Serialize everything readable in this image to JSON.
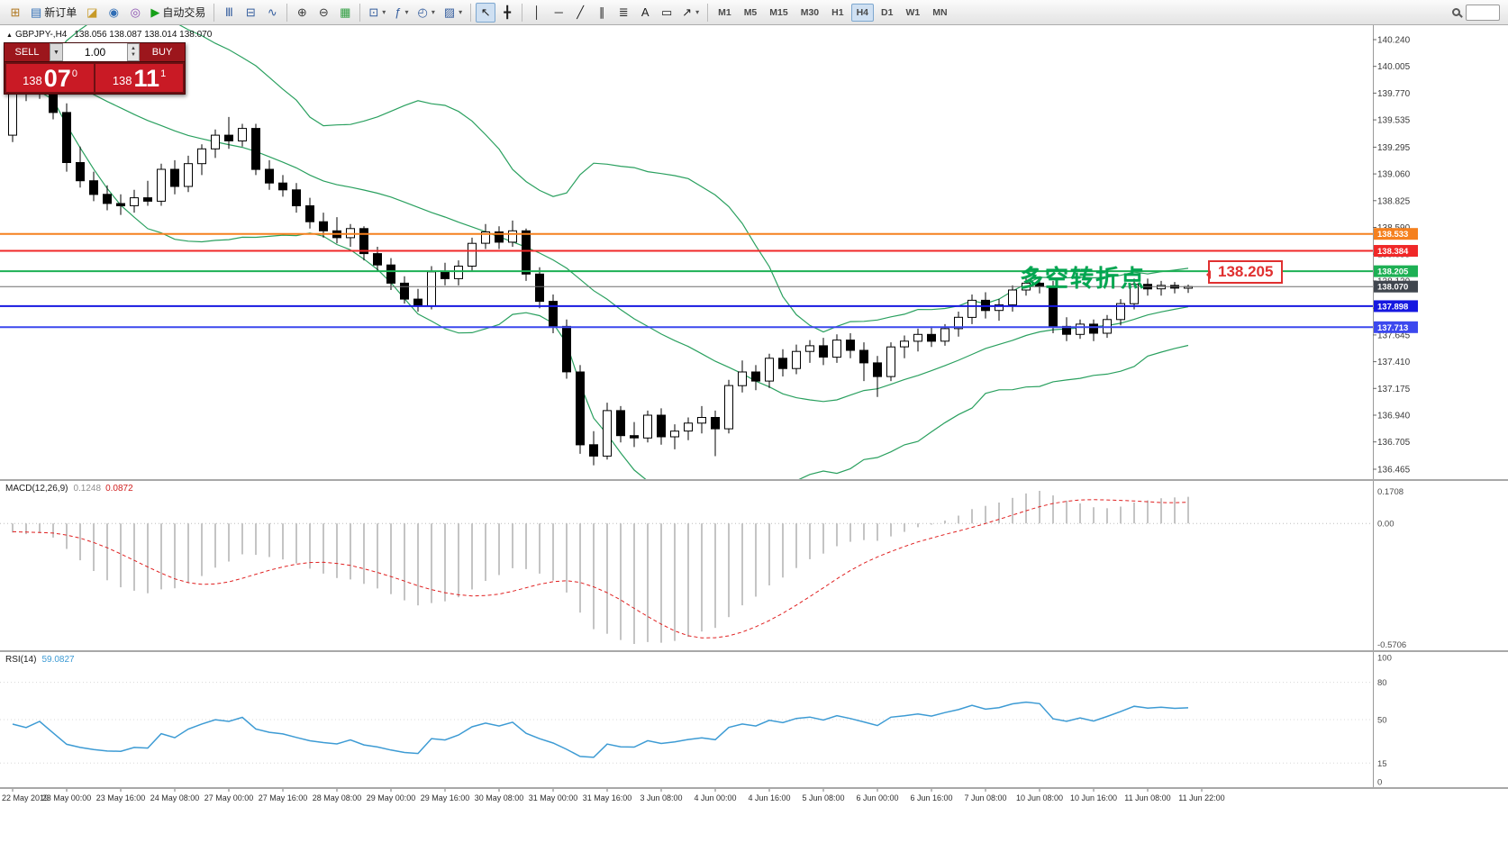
{
  "toolbar": {
    "groups": [
      {
        "name": "file-group",
        "items": [
          {
            "name": "new-chart-button",
            "glyph": "⊞",
            "color": "#b07820"
          },
          {
            "name": "new-order-button",
            "glyph": "▤",
            "color": "#2f6db5",
            "label": "新订单"
          },
          {
            "name": "profiles-button",
            "glyph": "◪",
            "color": "#c79a28"
          },
          {
            "name": "market-watch-button",
            "glyph": "◉",
            "color": "#2f6db5"
          },
          {
            "name": "navigator-button",
            "glyph": "◎",
            "color": "#8a4fb0"
          },
          {
            "name": "autotrading-button",
            "glyph": "▶",
            "color": "#16a018",
            "label": "自动交易"
          }
        ]
      },
      {
        "name": "chart-type-group",
        "items": [
          {
            "name": "bar-chart-button",
            "glyph": "Ⅲ",
            "color": "#355e9e"
          },
          {
            "name": "candlestick-chart-button",
            "glyph": "⊟",
            "color": "#355e9e"
          },
          {
            "name": "line-chart-button",
            "glyph": "∿",
            "color": "#355e9e"
          }
        ]
      },
      {
        "name": "zoom-group",
        "items": [
          {
            "name": "zoom-in-button",
            "glyph": "⊕",
            "color": "#3a3a3a"
          },
          {
            "name": "zoom-out-button",
            "glyph": "⊖",
            "color": "#3a3a3a"
          },
          {
            "name": "tile-windows-button",
            "glyph": "▦",
            "color": "#2f9e40"
          }
        ]
      },
      {
        "name": "chart-tools-group",
        "items": [
          {
            "name": "auto-scroll-button",
            "glyph": "⊡",
            "color": "#355e9e",
            "dropdown": true
          },
          {
            "name": "indicators-button",
            "glyph": "ƒ",
            "color": "#355e9e",
            "dropdown": true
          },
          {
            "name": "periods-button",
            "glyph": "◴",
            "color": "#355e9e",
            "dropdown": true
          },
          {
            "name": "templates-button",
            "glyph": "▨",
            "color": "#355e9e",
            "dropdown": true
          }
        ]
      },
      {
        "name": "cursor-group",
        "items": [
          {
            "name": "cursor-button",
            "glyph": "↖",
            "color": "#1e1e1e",
            "active": true
          },
          {
            "name": "crosshair-button",
            "glyph": "╋",
            "color": "#1e1e1e"
          }
        ]
      },
      {
        "name": "objects-group",
        "items": [
          {
            "name": "vertical-line-button",
            "glyph": "│",
            "color": "#1e1e1e"
          },
          {
            "name": "horizontal-line-button",
            "glyph": "─",
            "color": "#1e1e1e"
          },
          {
            "name": "trendline-button",
            "glyph": "╱",
            "color": "#1e1e1e"
          },
          {
            "name": "equidistant-channel-button",
            "glyph": "∥",
            "color": "#1e1e1e"
          },
          {
            "name": "fibonacci-button",
            "glyph": "≣",
            "color": "#1e1e1e"
          },
          {
            "name": "text-button",
            "glyph": "A",
            "color": "#1e1e1e"
          },
          {
            "name": "text-label-button",
            "glyph": "▭",
            "color": "#1e1e1e"
          },
          {
            "name": "arrows-button",
            "glyph": "↗",
            "color": "#1e1e1e",
            "dropdown": true
          }
        ]
      },
      {
        "name": "timeframe-group",
        "items": [
          {
            "name": "timeframe-m1-button",
            "label": "M1",
            "tf": true
          },
          {
            "name": "timeframe-m5-button",
            "label": "M5",
            "tf": true
          },
          {
            "name": "timeframe-m15-button",
            "label": "M15",
            "tf": true
          },
          {
            "name": "timeframe-m30-button",
            "label": "M30",
            "tf": true
          },
          {
            "name": "timeframe-h1-button",
            "label": "H1",
            "tf": true
          },
          {
            "name": "timeframe-h4-button",
            "label": "H4",
            "tf": true,
            "active": true
          },
          {
            "name": "timeframe-d1-button",
            "label": "D1",
            "tf": true
          },
          {
            "name": "timeframe-w1-button",
            "label": "W1",
            "tf": true
          },
          {
            "name": "timeframe-mn-button",
            "label": "MN",
            "tf": true
          }
        ]
      }
    ]
  },
  "symbol_header": {
    "symbol": "GBPJPY-,H4",
    "quote": "138.056 138.087 138.014 138.070"
  },
  "trade_panel": {
    "sell_label": "SELL",
    "buy_label": "BUY",
    "volume": "1.00",
    "sell_price": {
      "base": "138",
      "big": "07",
      "sup": "0"
    },
    "buy_price": {
      "base": "138",
      "big": "11",
      "sup": "1"
    }
  },
  "annotation": {
    "text": "多空转折点",
    "color": "#00a650",
    "callout_label": "138.205",
    "callout_color": "#e03030"
  },
  "chart_data": {
    "type": "candlestick",
    "title": "GBPJPY-,H4",
    "symbol": "GBPJPY-",
    "timeframe": "H4",
    "last_ohlc": {
      "open": "138.056",
      "high": "138.087",
      "low": "138.014",
      "close": "138.070"
    },
    "y_axis": {
      "max": 140.24,
      "min": 136.465,
      "ticks": [
        "140.240",
        "140.005",
        "139.770",
        "139.535",
        "139.295",
        "139.060",
        "138.825",
        "138.590",
        "138.355",
        "138.120",
        "137.880",
        "137.645",
        "137.410",
        "137.175",
        "136.940",
        "136.705",
        "136.465"
      ]
    },
    "bollinger": {
      "period": 20,
      "deviation": 2,
      "color": "#2aa05f"
    },
    "hlines": [
      {
        "label": "138.533",
        "price": 138.533,
        "color": "#f5801e"
      },
      {
        "label": "138.384",
        "price": 138.384,
        "color": "#f02828"
      },
      {
        "label": "138.205",
        "price": 138.205,
        "color": "#1db054"
      },
      {
        "label": "137.898",
        "price": 137.898,
        "color": "#1618e0"
      },
      {
        "label": "137.713",
        "price": 137.713,
        "color": "#3c48ee"
      }
    ],
    "current_price": {
      "value": 138.07,
      "label": "138.070",
      "badge_color": "#40464e"
    },
    "candles": [
      [
        139.4,
        139.93,
        139.34,
        139.86
      ],
      [
        139.86,
        139.98,
        139.7,
        139.78
      ],
      [
        139.78,
        139.95,
        139.72,
        139.9
      ],
      [
        139.9,
        139.94,
        139.54,
        139.6
      ],
      [
        139.6,
        139.68,
        139.08,
        139.16
      ],
      [
        139.16,
        139.3,
        138.94,
        139.0
      ],
      [
        139.0,
        139.08,
        138.82,
        138.88
      ],
      [
        138.88,
        138.96,
        138.74,
        138.8
      ],
      [
        138.8,
        138.88,
        138.7,
        138.78
      ],
      [
        138.78,
        138.92,
        138.72,
        138.85
      ],
      [
        138.85,
        139.0,
        138.78,
        138.82
      ],
      [
        138.82,
        139.15,
        138.78,
        139.1
      ],
      [
        139.1,
        139.18,
        138.88,
        138.95
      ],
      [
        138.95,
        139.22,
        138.9,
        139.15
      ],
      [
        139.15,
        139.32,
        139.05,
        139.28
      ],
      [
        139.28,
        139.45,
        139.2,
        139.4
      ],
      [
        139.4,
        139.56,
        139.28,
        139.35
      ],
      [
        139.35,
        139.5,
        139.3,
        139.46
      ],
      [
        139.46,
        139.5,
        139.05,
        139.1
      ],
      [
        139.1,
        139.18,
        138.92,
        138.98
      ],
      [
        138.98,
        139.05,
        138.86,
        138.92
      ],
      [
        138.92,
        138.98,
        138.72,
        138.78
      ],
      [
        138.78,
        138.85,
        138.58,
        138.64
      ],
      [
        138.64,
        138.72,
        138.5,
        138.56
      ],
      [
        138.56,
        138.68,
        138.45,
        138.5
      ],
      [
        138.5,
        138.62,
        138.42,
        138.58
      ],
      [
        138.58,
        138.6,
        138.3,
        138.36
      ],
      [
        138.36,
        138.42,
        138.2,
        138.26
      ],
      [
        138.26,
        138.32,
        138.04,
        138.1
      ],
      [
        138.1,
        138.16,
        137.92,
        137.96
      ],
      [
        137.96,
        138.05,
        137.85,
        137.9
      ],
      [
        137.9,
        138.25,
        137.87,
        138.2
      ],
      [
        138.2,
        138.28,
        138.08,
        138.14
      ],
      [
        138.14,
        138.3,
        138.08,
        138.25
      ],
      [
        138.25,
        138.5,
        138.2,
        138.45
      ],
      [
        138.45,
        138.62,
        138.4,
        138.55
      ],
      [
        138.55,
        138.6,
        138.4,
        138.46
      ],
      [
        138.46,
        138.65,
        138.42,
        138.56
      ],
      [
        138.56,
        138.58,
        138.12,
        138.18
      ],
      [
        138.18,
        138.24,
        137.88,
        137.94
      ],
      [
        137.94,
        138.0,
        137.66,
        137.72
      ],
      [
        137.72,
        137.78,
        137.26,
        137.32
      ],
      [
        137.32,
        137.38,
        136.6,
        136.68
      ],
      [
        136.68,
        136.8,
        136.5,
        136.58
      ],
      [
        136.58,
        137.05,
        136.55,
        136.98
      ],
      [
        136.98,
        137.02,
        136.7,
        136.76
      ],
      [
        136.76,
        136.88,
        136.66,
        136.74
      ],
      [
        136.74,
        136.98,
        136.7,
        136.94
      ],
      [
        136.94,
        137.0,
        136.68,
        136.75
      ],
      [
        136.75,
        136.86,
        136.64,
        136.8
      ],
      [
        136.8,
        136.92,
        136.72,
        136.87
      ],
      [
        136.87,
        137.02,
        136.78,
        136.92
      ],
      [
        136.92,
        136.98,
        136.58,
        136.82
      ],
      [
        136.82,
        137.25,
        136.78,
        137.2
      ],
      [
        137.2,
        137.42,
        137.14,
        137.32
      ],
      [
        137.32,
        137.38,
        137.16,
        137.24
      ],
      [
        137.24,
        137.48,
        137.18,
        137.44
      ],
      [
        137.44,
        137.52,
        137.28,
        137.35
      ],
      [
        137.35,
        137.56,
        137.3,
        137.5
      ],
      [
        137.5,
        137.6,
        137.4,
        137.55
      ],
      [
        137.55,
        137.62,
        137.38,
        137.45
      ],
      [
        137.45,
        137.65,
        137.4,
        137.6
      ],
      [
        137.6,
        137.66,
        137.44,
        137.51
      ],
      [
        137.51,
        137.58,
        137.24,
        137.4
      ],
      [
        137.4,
        137.46,
        137.1,
        137.28
      ],
      [
        137.28,
        137.58,
        137.24,
        137.54
      ],
      [
        137.54,
        137.64,
        137.44,
        137.59
      ],
      [
        137.59,
        137.7,
        137.5,
        137.65
      ],
      [
        137.65,
        137.72,
        137.54,
        137.59
      ],
      [
        137.59,
        137.74,
        137.55,
        137.7
      ],
      [
        137.7,
        137.85,
        137.63,
        137.8
      ],
      [
        137.8,
        138.0,
        137.74,
        137.95
      ],
      [
        137.95,
        138.02,
        137.79,
        137.86
      ],
      [
        137.86,
        137.96,
        137.77,
        137.91
      ],
      [
        137.91,
        138.08,
        137.85,
        138.04
      ],
      [
        138.04,
        138.16,
        137.99,
        138.1
      ],
      [
        138.1,
        138.16,
        138.01,
        138.07
      ],
      [
        138.07,
        138.12,
        137.66,
        137.72
      ],
      [
        137.72,
        137.8,
        137.59,
        137.65
      ],
      [
        137.65,
        137.78,
        137.61,
        137.74
      ],
      [
        137.74,
        137.78,
        137.59,
        137.66
      ],
      [
        137.66,
        137.82,
        137.62,
        137.78
      ],
      [
        137.78,
        137.96,
        137.73,
        137.92
      ],
      [
        137.92,
        138.14,
        137.87,
        138.09
      ],
      [
        138.09,
        138.14,
        137.99,
        138.05
      ],
      [
        138.05,
        138.12,
        137.99,
        138.08
      ],
      [
        138.08,
        138.11,
        138.01,
        138.056
      ],
      [
        138.056,
        138.087,
        138.014,
        138.07
      ]
    ],
    "time_labels": [
      {
        "i": 0,
        "t": "22 May 2019"
      },
      {
        "i": 4,
        "t": "23 May 00:00"
      },
      {
        "i": 8,
        "t": "23 May 16:00"
      },
      {
        "i": 12,
        "t": "24 May 08:00"
      },
      {
        "i": 16,
        "t": "27 May 00:00"
      },
      {
        "i": 20,
        "t": "27 May 16:00"
      },
      {
        "i": 24,
        "t": "28 May 08:00"
      },
      {
        "i": 28,
        "t": "29 May 00:00"
      },
      {
        "i": 32,
        "t": "29 May 16:00"
      },
      {
        "i": 36,
        "t": "30 May 08:00"
      },
      {
        "i": 40,
        "t": "31 May 00:00"
      },
      {
        "i": 44,
        "t": "31 May 16:00"
      },
      {
        "i": 48,
        "t": "3 Jun 08:00"
      },
      {
        "i": 52,
        "t": "4 Jun 00:00"
      },
      {
        "i": 56,
        "t": "4 Jun 16:00"
      },
      {
        "i": 60,
        "t": "5 Jun 08:00"
      },
      {
        "i": 64,
        "t": "6 Jun 00:00"
      },
      {
        "i": 68,
        "t": "6 Jun 16:00"
      },
      {
        "i": 72,
        "t": "7 Jun 08:00"
      },
      {
        "i": 76,
        "t": "10 Jun 08:00"
      },
      {
        "i": 80,
        "t": "10 Jun 16:00"
      },
      {
        "i": 84,
        "t": "11 Jun 08:00"
      },
      {
        "i": 88,
        "t": "11 Jun 22:00"
      }
    ]
  },
  "macd_panel": {
    "name": "MACD(12,26,9)",
    "main_value": "0.1248",
    "signal_value": "0.0872",
    "params": {
      "fast": 12,
      "slow": 26,
      "signal": 9
    },
    "axis": {
      "max": "0.1708",
      "zero": "0.00",
      "min": "-0.5706"
    },
    "histogram_color": "#b6b6b6",
    "signal_color": "#e02020"
  },
  "rsi_panel": {
    "name": "RSI(14)",
    "value": "59.0827",
    "period": 14,
    "axis_labels": [
      {
        "v": 100,
        "t": "100"
      },
      {
        "v": 80,
        "t": "80"
      },
      {
        "v": 50,
        "t": "50"
      },
      {
        "v": 15,
        "t": "15"
      },
      {
        "v": 0,
        "t": "0"
      }
    ],
    "levels": [
      80,
      50,
      15
    ],
    "line_color": "#3d9bd4"
  }
}
